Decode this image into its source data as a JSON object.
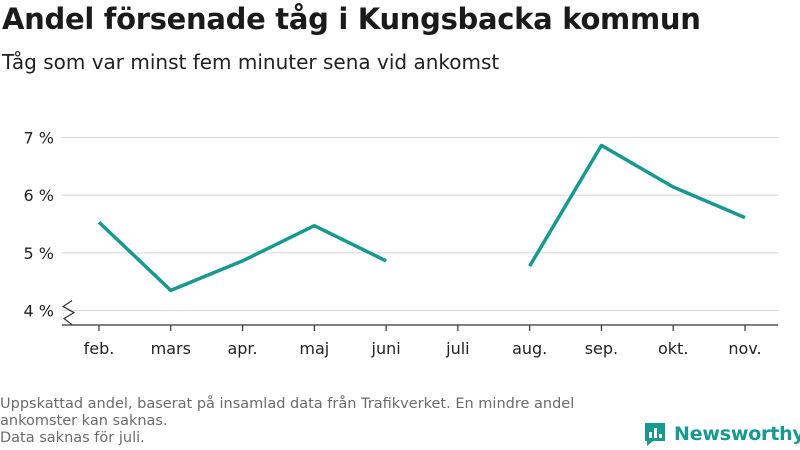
{
  "chart_data": {
    "type": "line",
    "title": "Andel försenade tåg i Kungsbacka kommun",
    "subtitle": "Tåg som var minst fem minuter sena vid ankomst",
    "categories": [
      "feb.",
      "mars",
      "apr.",
      "maj",
      "juni",
      "juli",
      "aug.",
      "sep.",
      "okt.",
      "nov."
    ],
    "series": [
      {
        "values": [
          5.53,
          4.35,
          4.86,
          5.47,
          4.86,
          null,
          4.77,
          6.86,
          6.14,
          5.61
        ]
      }
    ],
    "yticks": [
      4,
      5,
      6,
      7
    ],
    "ytick_labels": [
      "4 %",
      "5 %",
      "6 %",
      "7 %"
    ],
    "ylim": [
      3.75,
      7.3
    ],
    "grid": true,
    "axis_break": true,
    "line_color": "#17998f"
  },
  "footnote": [
    "Uppskattad andel, baserat på insamlad data från Trafikverket. En mindre andel",
    "ankomster kan saknas.",
    "Data saknas för juli."
  ],
  "brand": {
    "name": "Newsworthy",
    "icon": "newsworthy-logo-icon",
    "color": "#17998f"
  }
}
